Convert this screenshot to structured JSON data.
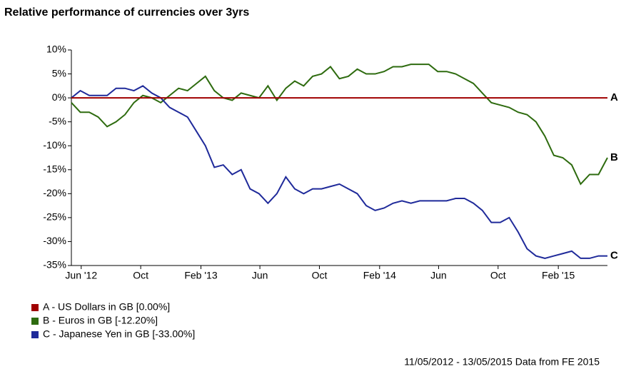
{
  "chart_data": {
    "type": "line",
    "title": "Relative performance of currencies over 3yrs",
    "x": [
      2012.36,
      2012.41,
      2012.46,
      2012.51,
      2012.56,
      2012.61,
      2012.66,
      2012.71,
      2012.76,
      2012.81,
      2012.86,
      2012.91,
      2012.96,
      2013.01,
      2013.06,
      2013.11,
      2013.16,
      2013.21,
      2013.26,
      2013.31,
      2013.36,
      2013.41,
      2013.46,
      2013.51,
      2013.56,
      2013.61,
      2013.66,
      2013.71,
      2013.76,
      2013.81,
      2013.86,
      2013.91,
      2013.96,
      2014.01,
      2014.06,
      2014.11,
      2014.16,
      2014.21,
      2014.26,
      2014.31,
      2014.36,
      2014.41,
      2014.46,
      2014.51,
      2014.56,
      2014.61,
      2014.66,
      2014.71,
      2014.76,
      2014.81,
      2014.86,
      2014.91,
      2014.96,
      2015.01,
      2015.06,
      2015.11,
      2015.16,
      2015.21,
      2015.26,
      2015.31,
      2015.36
    ],
    "series": [
      {
        "name": "A - US Dollars in GB [0.00%]",
        "color": "#a00000",
        "values": [
          0,
          0,
          0,
          0,
          0,
          0,
          0,
          0,
          0,
          0,
          0,
          0,
          0,
          0,
          0,
          0,
          0,
          0,
          0,
          0,
          0,
          0,
          0,
          0,
          0,
          0,
          0,
          0,
          0,
          0,
          0,
          0,
          0,
          0,
          0,
          0,
          0,
          0,
          0,
          0,
          0,
          0,
          0,
          0,
          0,
          0,
          0,
          0,
          0,
          0,
          0,
          0,
          0,
          0,
          0,
          0,
          0,
          0,
          0,
          0,
          0
        ]
      },
      {
        "name": "B - Euros in GB [-12.20%]",
        "color": "#2e6b0f",
        "values": [
          -1,
          -3,
          -3,
          -4,
          -6,
          -5,
          -3.5,
          -1,
          0.5,
          0,
          -1,
          0.5,
          2,
          1.5,
          3,
          4.5,
          1.5,
          0,
          -0.5,
          1,
          0.5,
          0,
          2.5,
          -0.5,
          2,
          3.5,
          2.5,
          4.5,
          5,
          6.5,
          4,
          4.5,
          6,
          5,
          5,
          5.5,
          6.5,
          6.5,
          7,
          7,
          7,
          5.5,
          5.5,
          5,
          4,
          3,
          1,
          -1,
          -1.5,
          -2,
          -3,
          -3.5,
          -5,
          -8,
          -12,
          -12.5,
          -14,
          -18,
          -16,
          -16,
          -12.5
        ]
      },
      {
        "name": "C - Japanese Yen in GB [-33.00%]",
        "color": "#1f2a9a",
        "values": [
          0,
          1.5,
          0.5,
          0.5,
          0.5,
          2,
          2,
          1.5,
          2.5,
          1,
          0,
          -2,
          -3,
          -4,
          -7,
          -10,
          -14.5,
          -14,
          -16,
          -15,
          -19,
          -20,
          -22,
          -20,
          -16.5,
          -19,
          -20,
          -19,
          -19,
          -18.5,
          -18,
          -19,
          -20,
          -22.5,
          -23.5,
          -23,
          -22,
          -21.5,
          -22,
          -21.5,
          -21.5,
          -21.5,
          -21.5,
          -21,
          -21,
          -22,
          -23.5,
          -26,
          -26,
          -25,
          -28,
          -31.5,
          -33,
          -33.5,
          -33,
          -32.5,
          -32,
          -33.5,
          -33.5,
          -33,
          -33
        ]
      }
    ],
    "end_labels": [
      "A",
      "B",
      "C"
    ],
    "xlim": [
      2012.36,
      2015.36
    ],
    "xticks": [
      {
        "value": 2012.415,
        "label": "Jun '12"
      },
      {
        "value": 2012.748,
        "label": "Oct"
      },
      {
        "value": 2013.085,
        "label": "Feb '13"
      },
      {
        "value": 2013.415,
        "label": "Jun"
      },
      {
        "value": 2013.748,
        "label": "Oct"
      },
      {
        "value": 2014.085,
        "label": "Feb '14"
      },
      {
        "value": 2014.415,
        "label": "Jun"
      },
      {
        "value": 2014.748,
        "label": "Oct"
      },
      {
        "value": 2015.085,
        "label": "Feb '15"
      }
    ],
    "ylim": [
      -35,
      10
    ],
    "yticks": [
      {
        "value": 10,
        "label": "10%"
      },
      {
        "value": 5,
        "label": "5%"
      },
      {
        "value": 0,
        "label": "0%"
      },
      {
        "value": -5,
        "label": "-5%"
      },
      {
        "value": -10,
        "label": "-10%"
      },
      {
        "value": -15,
        "label": "-15%"
      },
      {
        "value": -20,
        "label": "-20%"
      },
      {
        "value": -25,
        "label": "-25%"
      },
      {
        "value": -30,
        "label": "-30%"
      },
      {
        "value": -35,
        "label": "-35%"
      }
    ],
    "grid": false,
    "footer": "11/05/2012 - 13/05/2015 Data from FE 2015"
  }
}
